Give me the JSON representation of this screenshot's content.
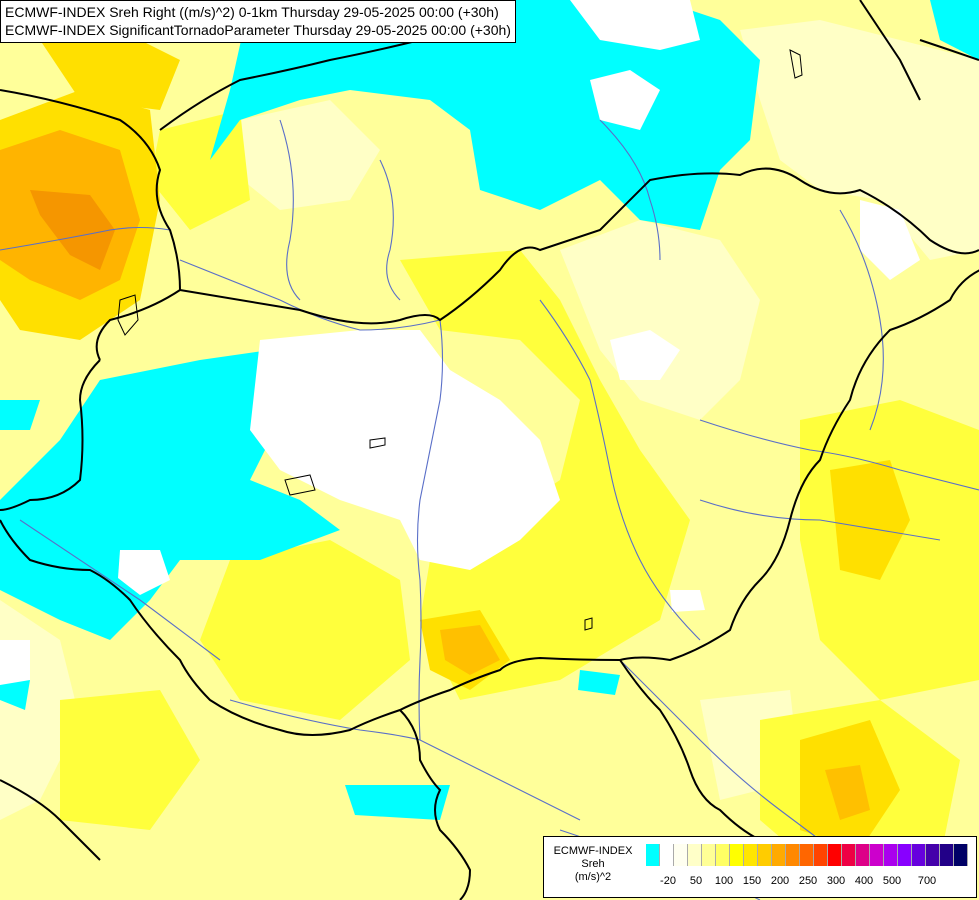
{
  "title": {
    "line1": "ECMWF-INDEX Sreh Right ((m/s)^2) 0-1km Thursday 29-05-2025 00:00 (+30h)",
    "line2": "ECMWF-INDEX SignificantTornadoParameter Thursday 29-05-2025 00:00 (+30h)"
  },
  "legend": {
    "model": "ECMWF-INDEX",
    "parameter": "Sreh",
    "unit": "(m/s)^2",
    "colors": [
      "#00ffff",
      "#ffffff",
      "#fffff0",
      "#ffffc8",
      "#ffff96",
      "#ffff64",
      "#ffff00",
      "#ffe600",
      "#ffcc00",
      "#ffaa00",
      "#ff8800",
      "#ff6600",
      "#ff4400",
      "#ff0000",
      "#ee0044",
      "#dd0088",
      "#cc00cc",
      "#aa00ee",
      "#8800ff",
      "#6600dd",
      "#4400aa",
      "#220088",
      "#000066"
    ],
    "ticks": [
      "-20",
      "50",
      "100",
      "150",
      "200",
      "250",
      "300",
      "400",
      "500",
      "700"
    ]
  },
  "colors": {
    "cyan": "#00ffff",
    "white": "#ffffff",
    "pale_yellow": "#ffffc0",
    "light_yellow": "#ffff9a",
    "yellow": "#ffff40",
    "gold": "#ffe600",
    "orange": "#ffcc00",
    "dark_orange": "#f5a000",
    "border": "#000000",
    "river": "#5a6fc8"
  }
}
